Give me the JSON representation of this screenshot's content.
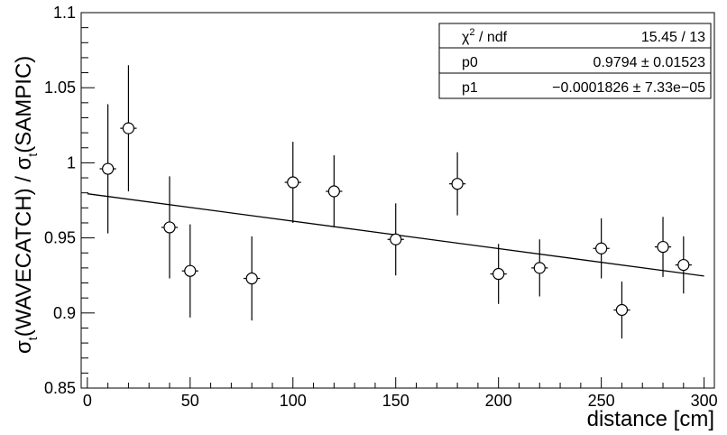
{
  "chart_data": {
    "type": "scatter",
    "xlabel": "distance [cm]",
    "ylabel_parts": [
      "σ",
      "t",
      "(WAVECATCH) / σ",
      "t",
      "(SAMPIC)"
    ],
    "xlim": [
      -3,
      305
    ],
    "ylim": [
      0.85,
      1.1
    ],
    "x_ticks": [
      0,
      50,
      100,
      150,
      200,
      250,
      300
    ],
    "y_ticks": [
      0.85,
      0.9,
      0.95,
      1.0,
      1.05,
      1.1
    ],
    "y_tick_labels": [
      "0.85",
      "0.9",
      "0.95",
      "1",
      "1.05",
      "1.1"
    ],
    "x_tick_labels": [
      "0",
      "50",
      "100",
      "150",
      "200",
      "250",
      "300"
    ],
    "points": [
      {
        "x": 10,
        "y": 0.996,
        "yerr": 0.043,
        "xerr": 4
      },
      {
        "x": 20,
        "y": 1.023,
        "yerr": 0.042,
        "xerr": 4
      },
      {
        "x": 40,
        "y": 0.957,
        "yerr": 0.034,
        "xerr": 4
      },
      {
        "x": 50,
        "y": 0.928,
        "yerr": 0.031,
        "xerr": 4
      },
      {
        "x": 80,
        "y": 0.923,
        "yerr": 0.028,
        "xerr": 4
      },
      {
        "x": 100,
        "y": 0.987,
        "yerr": 0.027,
        "xerr": 4
      },
      {
        "x": 120,
        "y": 0.981,
        "yerr": 0.024,
        "xerr": 4
      },
      {
        "x": 150,
        "y": 0.949,
        "yerr": 0.024,
        "xerr": 4
      },
      {
        "x": 180,
        "y": 0.986,
        "yerr": 0.021,
        "xerr": 4
      },
      {
        "x": 200,
        "y": 0.926,
        "yerr": 0.02,
        "xerr": 4
      },
      {
        "x": 220,
        "y": 0.93,
        "yerr": 0.019,
        "xerr": 4
      },
      {
        "x": 250,
        "y": 0.943,
        "yerr": 0.02,
        "xerr": 4
      },
      {
        "x": 260,
        "y": 0.902,
        "yerr": 0.019,
        "xerr": 4
      },
      {
        "x": 280,
        "y": 0.944,
        "yerr": 0.02,
        "xerr": 4
      },
      {
        "x": 290,
        "y": 0.932,
        "yerr": 0.019,
        "xerr": 4
      }
    ],
    "fit": {
      "type": "linear",
      "p0": 0.9794,
      "p1": -0.0001826,
      "x_range": [
        0,
        300
      ]
    },
    "stats_box": {
      "rows": [
        {
          "label_main": "χ",
          "label_sup": "2",
          "label_rest": " / ndf",
          "value": "15.45 / 13"
        },
        {
          "label_main": "p0",
          "label_sup": "",
          "label_rest": "",
          "value": "0.9794 ± 0.01523"
        },
        {
          "label_main": "p1",
          "label_sup": "",
          "label_rest": "",
          "value": "−0.0001826 ± 7.33e−05"
        }
      ]
    },
    "grid": false,
    "colors": {
      "marker_fill": "#ffffff",
      "marker_stroke": "#000000",
      "line": "#000000"
    }
  }
}
